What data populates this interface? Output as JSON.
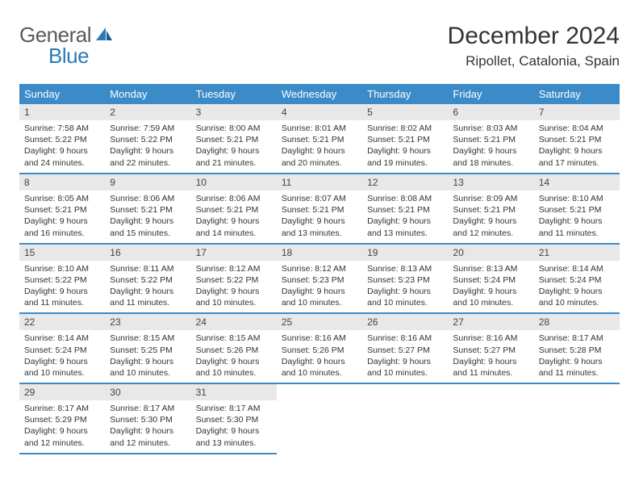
{
  "logo": {
    "text1": "General",
    "text2": "Blue"
  },
  "title": "December 2024",
  "location": "Ripollet, Catalonia, Spain",
  "colors": {
    "header_bg": "#3b8bc9",
    "header_text": "#ffffff",
    "daynum_bg": "#e8e8e8",
    "border": "#3b8bc9",
    "logo_gray": "#5a5a5a",
    "logo_blue": "#2a7ab8"
  },
  "weekdays": [
    "Sunday",
    "Monday",
    "Tuesday",
    "Wednesday",
    "Thursday",
    "Friday",
    "Saturday"
  ],
  "weeks": [
    [
      {
        "n": "1",
        "sunrise": "Sunrise: 7:58 AM",
        "sunset": "Sunset: 5:22 PM",
        "day1": "Daylight: 9 hours",
        "day2": "and 24 minutes."
      },
      {
        "n": "2",
        "sunrise": "Sunrise: 7:59 AM",
        "sunset": "Sunset: 5:22 PM",
        "day1": "Daylight: 9 hours",
        "day2": "and 22 minutes."
      },
      {
        "n": "3",
        "sunrise": "Sunrise: 8:00 AM",
        "sunset": "Sunset: 5:21 PM",
        "day1": "Daylight: 9 hours",
        "day2": "and 21 minutes."
      },
      {
        "n": "4",
        "sunrise": "Sunrise: 8:01 AM",
        "sunset": "Sunset: 5:21 PM",
        "day1": "Daylight: 9 hours",
        "day2": "and 20 minutes."
      },
      {
        "n": "5",
        "sunrise": "Sunrise: 8:02 AM",
        "sunset": "Sunset: 5:21 PM",
        "day1": "Daylight: 9 hours",
        "day2": "and 19 minutes."
      },
      {
        "n": "6",
        "sunrise": "Sunrise: 8:03 AM",
        "sunset": "Sunset: 5:21 PM",
        "day1": "Daylight: 9 hours",
        "day2": "and 18 minutes."
      },
      {
        "n": "7",
        "sunrise": "Sunrise: 8:04 AM",
        "sunset": "Sunset: 5:21 PM",
        "day1": "Daylight: 9 hours",
        "day2": "and 17 minutes."
      }
    ],
    [
      {
        "n": "8",
        "sunrise": "Sunrise: 8:05 AM",
        "sunset": "Sunset: 5:21 PM",
        "day1": "Daylight: 9 hours",
        "day2": "and 16 minutes."
      },
      {
        "n": "9",
        "sunrise": "Sunrise: 8:06 AM",
        "sunset": "Sunset: 5:21 PM",
        "day1": "Daylight: 9 hours",
        "day2": "and 15 minutes."
      },
      {
        "n": "10",
        "sunrise": "Sunrise: 8:06 AM",
        "sunset": "Sunset: 5:21 PM",
        "day1": "Daylight: 9 hours",
        "day2": "and 14 minutes."
      },
      {
        "n": "11",
        "sunrise": "Sunrise: 8:07 AM",
        "sunset": "Sunset: 5:21 PM",
        "day1": "Daylight: 9 hours",
        "day2": "and 13 minutes."
      },
      {
        "n": "12",
        "sunrise": "Sunrise: 8:08 AM",
        "sunset": "Sunset: 5:21 PM",
        "day1": "Daylight: 9 hours",
        "day2": "and 13 minutes."
      },
      {
        "n": "13",
        "sunrise": "Sunrise: 8:09 AM",
        "sunset": "Sunset: 5:21 PM",
        "day1": "Daylight: 9 hours",
        "day2": "and 12 minutes."
      },
      {
        "n": "14",
        "sunrise": "Sunrise: 8:10 AM",
        "sunset": "Sunset: 5:21 PM",
        "day1": "Daylight: 9 hours",
        "day2": "and 11 minutes."
      }
    ],
    [
      {
        "n": "15",
        "sunrise": "Sunrise: 8:10 AM",
        "sunset": "Sunset: 5:22 PM",
        "day1": "Daylight: 9 hours",
        "day2": "and 11 minutes."
      },
      {
        "n": "16",
        "sunrise": "Sunrise: 8:11 AM",
        "sunset": "Sunset: 5:22 PM",
        "day1": "Daylight: 9 hours",
        "day2": "and 11 minutes."
      },
      {
        "n": "17",
        "sunrise": "Sunrise: 8:12 AM",
        "sunset": "Sunset: 5:22 PM",
        "day1": "Daylight: 9 hours",
        "day2": "and 10 minutes."
      },
      {
        "n": "18",
        "sunrise": "Sunrise: 8:12 AM",
        "sunset": "Sunset: 5:23 PM",
        "day1": "Daylight: 9 hours",
        "day2": "and 10 minutes."
      },
      {
        "n": "19",
        "sunrise": "Sunrise: 8:13 AM",
        "sunset": "Sunset: 5:23 PM",
        "day1": "Daylight: 9 hours",
        "day2": "and 10 minutes."
      },
      {
        "n": "20",
        "sunrise": "Sunrise: 8:13 AM",
        "sunset": "Sunset: 5:24 PM",
        "day1": "Daylight: 9 hours",
        "day2": "and 10 minutes."
      },
      {
        "n": "21",
        "sunrise": "Sunrise: 8:14 AM",
        "sunset": "Sunset: 5:24 PM",
        "day1": "Daylight: 9 hours",
        "day2": "and 10 minutes."
      }
    ],
    [
      {
        "n": "22",
        "sunrise": "Sunrise: 8:14 AM",
        "sunset": "Sunset: 5:24 PM",
        "day1": "Daylight: 9 hours",
        "day2": "and 10 minutes."
      },
      {
        "n": "23",
        "sunrise": "Sunrise: 8:15 AM",
        "sunset": "Sunset: 5:25 PM",
        "day1": "Daylight: 9 hours",
        "day2": "and 10 minutes."
      },
      {
        "n": "24",
        "sunrise": "Sunrise: 8:15 AM",
        "sunset": "Sunset: 5:26 PM",
        "day1": "Daylight: 9 hours",
        "day2": "and 10 minutes."
      },
      {
        "n": "25",
        "sunrise": "Sunrise: 8:16 AM",
        "sunset": "Sunset: 5:26 PM",
        "day1": "Daylight: 9 hours",
        "day2": "and 10 minutes."
      },
      {
        "n": "26",
        "sunrise": "Sunrise: 8:16 AM",
        "sunset": "Sunset: 5:27 PM",
        "day1": "Daylight: 9 hours",
        "day2": "and 10 minutes."
      },
      {
        "n": "27",
        "sunrise": "Sunrise: 8:16 AM",
        "sunset": "Sunset: 5:27 PM",
        "day1": "Daylight: 9 hours",
        "day2": "and 11 minutes."
      },
      {
        "n": "28",
        "sunrise": "Sunrise: 8:17 AM",
        "sunset": "Sunset: 5:28 PM",
        "day1": "Daylight: 9 hours",
        "day2": "and 11 minutes."
      }
    ],
    [
      {
        "n": "29",
        "sunrise": "Sunrise: 8:17 AM",
        "sunset": "Sunset: 5:29 PM",
        "day1": "Daylight: 9 hours",
        "day2": "and 12 minutes."
      },
      {
        "n": "30",
        "sunrise": "Sunrise: 8:17 AM",
        "sunset": "Sunset: 5:30 PM",
        "day1": "Daylight: 9 hours",
        "day2": "and 12 minutes."
      },
      {
        "n": "31",
        "sunrise": "Sunrise: 8:17 AM",
        "sunset": "Sunset: 5:30 PM",
        "day1": "Daylight: 9 hours",
        "day2": "and 13 minutes."
      },
      null,
      null,
      null,
      null
    ]
  ]
}
